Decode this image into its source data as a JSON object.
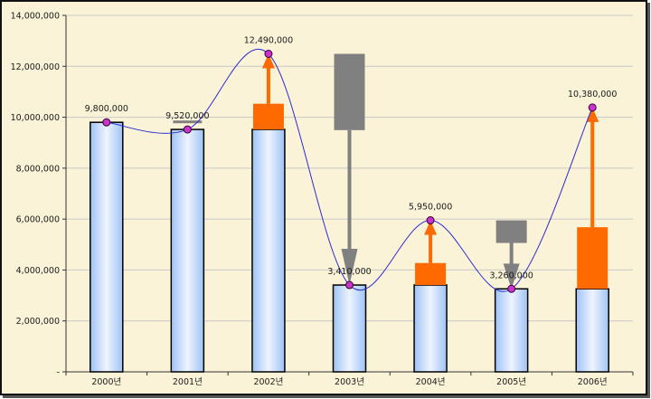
{
  "chart_data": {
    "type": "bar",
    "categories": [
      "2000년",
      "2001년",
      "2002년",
      "2003년",
      "2004년",
      "2005년",
      "2006년"
    ],
    "values": [
      9800000,
      9520000,
      12490000,
      3410000,
      5950000,
      3260000,
      10380000
    ],
    "data_labels": [
      "9,800,000",
      "9,520,000",
      "12,490,000",
      "3,410,000",
      "5,950,000",
      "3,260,000",
      "10,380,000"
    ],
    "base_bars": [
      9800000,
      9520000,
      9520000,
      3410000,
      3410000,
      3260000,
      3260000
    ],
    "changes": [
      {
        "from": 9800000,
        "to": 9520000,
        "direction": "down"
      },
      {
        "from": 9520000,
        "to": 12490000,
        "direction": "up"
      },
      {
        "from": 12490000,
        "to": 3410000,
        "direction": "down"
      },
      {
        "from": 3410000,
        "to": 5950000,
        "direction": "up"
      },
      {
        "from": 5950000,
        "to": 3260000,
        "direction": "down"
      },
      {
        "from": 3260000,
        "to": 10380000,
        "direction": "up"
      }
    ],
    "ylim": [
      0,
      14000000
    ],
    "yticks": [
      0,
      2000000,
      4000000,
      6000000,
      8000000,
      10000000,
      12000000,
      14000000
    ],
    "ytick_labels": [
      "-",
      "2,000,000",
      "4,000,000",
      "6,000,000",
      "8,000,000",
      "10,000,000",
      "12,000,000",
      "14,000,000"
    ],
    "title": "",
    "xlabel": "",
    "ylabel": "",
    "grid": true,
    "legend": "none",
    "colors": {
      "bar_fill_top": "#e6f0ff",
      "bar_fill_bottom": "#9fc3f5",
      "bar_stroke": "#000000",
      "increase": "#ff6a00",
      "decrease": "#808080",
      "line": "#2b2bd6",
      "marker": "#cc33cc",
      "grid": "#c8c8c8",
      "background": "#fbf3d8"
    }
  }
}
